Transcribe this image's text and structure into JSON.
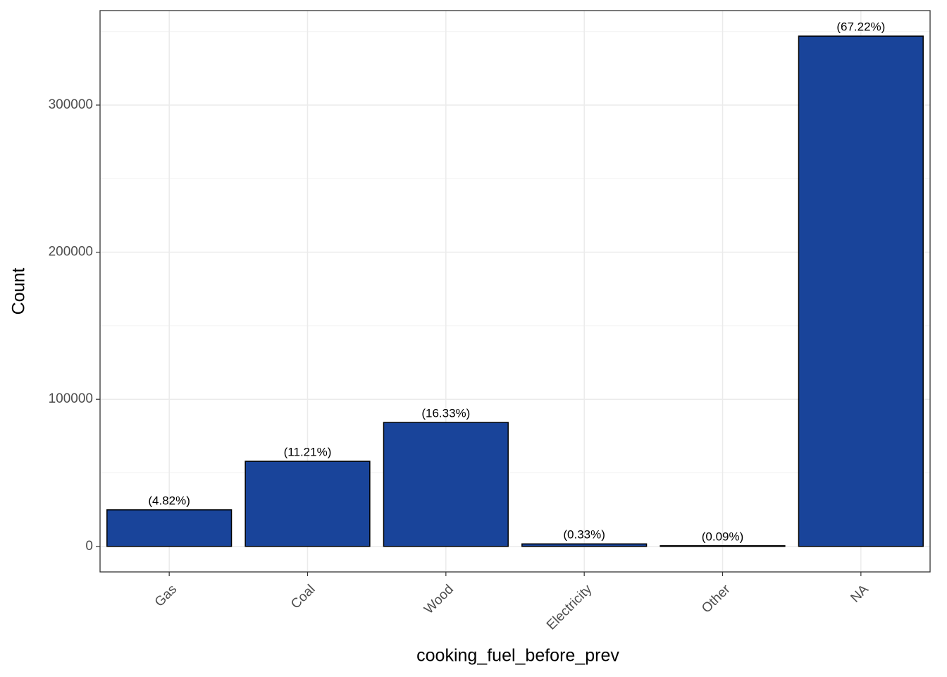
{
  "chart_data": {
    "type": "bar",
    "x_label": "cooking_fuel_before_prev",
    "y_label": "Count",
    "categories": [
      "Gas",
      "Coal",
      "Wood",
      "Electricity",
      "Other",
      "NA"
    ],
    "values": [
      24874,
      57849,
      84271,
      1703,
      464,
      346890
    ],
    "bar_labels": [
      "(4.82%)",
      "(11.21%)",
      "(16.33%)",
      "(0.33%)",
      "(0.09%)",
      "(67.22%)"
    ],
    "color": "#19449a",
    "ylim": [
      -17345,
      364235
    ],
    "yticks": [
      0,
      100000,
      200000,
      300000
    ],
    "minor_yticks": [
      50000,
      150000,
      250000,
      350000
    ],
    "grid": true
  }
}
